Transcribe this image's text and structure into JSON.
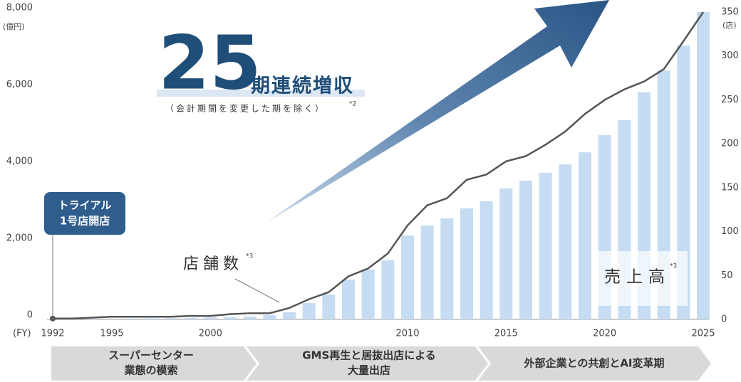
{
  "chart_data": {
    "type": "bar_line",
    "y_unit": "(億円)",
    "y2_unit": "(店)",
    "x_unit": "(FY)",
    "headline_number": "25",
    "headline_text": "期連続増収",
    "headline_note": "（会計期間を変更した期を除く）",
    "headline_note_ref": "*2",
    "first_store": [
      "トライアル",
      "1号店開店"
    ],
    "series_ref": "*3",
    "phases": [
      [
        "スーパーセンター",
        "業態の模索"
      ],
      [
        "GMS再生と居抜出店による",
        "大量出店"
      ],
      [
        "外部企業との共創とAI変革期"
      ]
    ],
    "categories": [
      "1992",
      null,
      null,
      "1995",
      null,
      null,
      null,
      null,
      "2000",
      null,
      null,
      null,
      null,
      null,
      null,
      null,
      null,
      null,
      "2010",
      null,
      null,
      null,
      null,
      "2015",
      null,
      null,
      null,
      null,
      "2020",
      null,
      null,
      null,
      null,
      "2025"
    ],
    "series": [
      {
        "name": "売上高",
        "color": "#c5dcf2",
        "axis": "y",
        "values": [
          5,
          10,
          15,
          20,
          25,
          30,
          35,
          40,
          50,
          60,
          75,
          110,
          185,
          425,
          650,
          1040,
          1300,
          1540,
          2185,
          2445,
          2630,
          2890,
          3075,
          3410,
          3610,
          3815,
          4035,
          4350,
          4800,
          5185,
          5910,
          6480,
          7130,
          8000
        ]
      },
      {
        "name": "店舗数",
        "color": "#555555",
        "axis": "y2",
        "values": [
          1,
          1,
          2,
          3,
          3,
          3,
          3,
          4,
          4,
          6,
          7,
          7,
          13,
          23,
          31,
          49,
          58,
          75,
          107,
          130,
          138,
          159,
          165,
          180,
          186,
          199,
          214,
          234,
          250,
          262,
          271,
          285,
          317,
          350
        ]
      }
    ],
    "ylim": [
      0,
      8000
    ],
    "yticks": [
      0,
      {
        "value": 2000,
        "label": "2,000"
      },
      {
        "value": 4000,
        "label": "4,000"
      },
      {
        "value": 6000,
        "label": "6,000"
      },
      {
        "value": 8000,
        "label": "8,000"
      }
    ],
    "y2lim": [
      0,
      350
    ],
    "y2ticks": [
      0,
      50,
      100,
      150,
      200,
      250,
      300,
      350
    ]
  }
}
